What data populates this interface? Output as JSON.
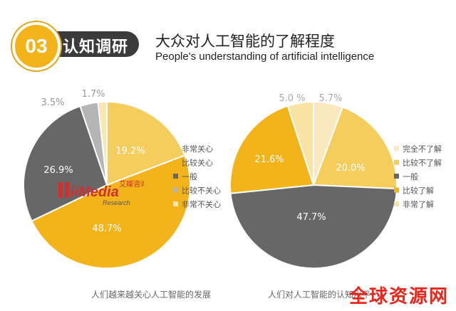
{
  "header": {
    "badge_number": "03",
    "badge_label": "认知调研",
    "title_cn": "大众对人工智能的了解程度",
    "title_en": "People's understanding of artificial intelligence"
  },
  "chart_data": [
    {
      "type": "pie",
      "title": "",
      "caption": "人们越来越关心人工智能的发展",
      "slices": [
        {
          "label": "非常关心",
          "value": 19.2,
          "value_label": "19.2%",
          "color": "#f5cd5c"
        },
        {
          "label": "比较关心",
          "value": 48.7,
          "value_label": "48.7%",
          "color": "#f3b31a"
        },
        {
          "label": "一般",
          "value": 26.9,
          "value_label": "26.9%",
          "color": "#676767"
        },
        {
          "label": "比较不关心",
          "value": 3.5,
          "value_label": "3.5%",
          "color": "#b5b5b5"
        },
        {
          "label": "非常不关心",
          "value": 1.7,
          "value_label": "1.7%",
          "color": "#f8e7b2"
        }
      ],
      "legend_position": "right"
    },
    {
      "type": "pie",
      "title": "",
      "caption": "人们对人工智能的认知水平",
      "slices": [
        {
          "label": "完全不了解",
          "value": 5.7,
          "value_label": "5.7%",
          "color": "#fae9be"
        },
        {
          "label": "比较不了解",
          "value": 20.0,
          "value_label": "20.0%",
          "color": "#f5cd5c"
        },
        {
          "label": "一般",
          "value": 47.7,
          "value_label": "47.7%",
          "color": "#676767"
        },
        {
          "label": "比较了解",
          "value": 21.6,
          "value_label": "21.6%",
          "color": "#f3b31a"
        },
        {
          "label": "非常了解",
          "value": 5.0,
          "value_label": "5.0 %",
          "color": "#f8e2a4"
        }
      ],
      "legend_position": "right"
    }
  ],
  "logo": {
    "brand": "iiMedia",
    "sub": "Research",
    "cn": "艾媒咨询"
  },
  "watermark": "全球资源网"
}
